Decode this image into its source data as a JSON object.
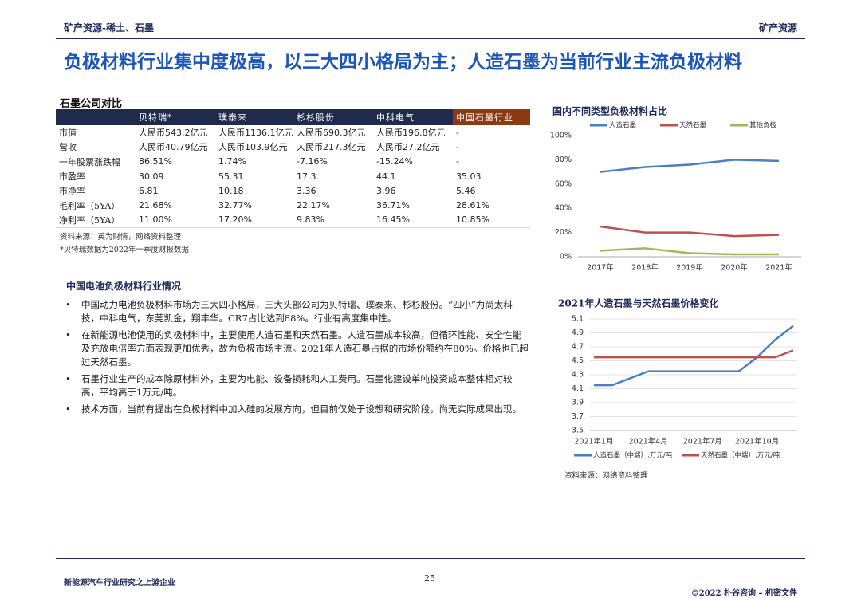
{
  "header": {
    "left": "矿产资源-稀土、石墨",
    "right": "矿产资源"
  },
  "title": "负极材料行业集中度极高，以三大四小格局为主；人造石墨为当前行业主流负极材料",
  "table": {
    "caption": "石墨公司对比",
    "columns": [
      "贝特瑞*",
      "璞泰来",
      "杉杉股份",
      "中科电气",
      "中国石墨行业"
    ],
    "rows": [
      [
        "市值",
        "人民币543.2亿元",
        "人民币1136.1亿元",
        "人民币690.3亿元",
        "人民币196.8亿元",
        "-"
      ],
      [
        "营收",
        "人民币40.79亿元",
        "人民币103.9亿元",
        "人民币217.3亿元",
        "人民币27.2亿元",
        "-"
      ],
      [
        "一年股票涨跌幅",
        "86.51%",
        "1.74%",
        "-7.16%",
        "-15.24%",
        "-"
      ],
      [
        "市盈率",
        "30.09",
        "55.31",
        "17.3",
        "44.1",
        "35.03"
      ],
      [
        "市净率",
        "6.81",
        "10.18",
        "3.36",
        "3.96",
        "5.46"
      ],
      [
        "毛利率（5YA）",
        "21.68%",
        "32.77%",
        "22.17%",
        "36.71%",
        "28.61%"
      ],
      [
        "净利率（5YA）",
        "11.00%",
        "17.20%",
        "9.83%",
        "16.45%",
        "10.85%"
      ]
    ],
    "notes": [
      "资料来源：英为财情，网络资料整理",
      "*贝特瑞数据为2022年一季度财报数据"
    ]
  },
  "section": {
    "heading": "中国电池负极材料行业情况",
    "bullets": [
      "中国动力电池负极材料市场为三大四小格局，三大头部公司为贝特瑞、璞泰来、杉杉股份。“四小”为尚太科技，中科电气，东莞凯金，翔丰华。CR7占比达到88%。行业有高度集中性。",
      "在新能源电池使用的负极材料中，主要使用人造石墨和天然石墨。人造石墨成本较高，但循环性能、安全性能及充放电倍率方面表现更加优秀，故为负极市场主流。2021年人造石墨占据的市场份额约在80%。价格也已超过天然石墨。",
      "石墨行业生产的成本除原材料外，主要为电能、设备损耗和人工费用。石墨化建设单吨投资成本整体相对较高，平均高于1万元/吨。",
      "技术方面，当前有提出在负极材料中加入硅的发展方向，但目前仅处于设想和研究阶段，尚无实际成果出现。"
    ]
  },
  "chart_data": [
    {
      "type": "line",
      "title": "国内不同类型负极材料占比",
      "categories": [
        "2017年",
        "2018年",
        "2019年",
        "2020年",
        "2021年"
      ],
      "series": [
        {
          "name": "人造石墨",
          "color": "#4a7fc1",
          "values": [
            70,
            74,
            76,
            80,
            79
          ]
        },
        {
          "name": "天然石墨",
          "color": "#c0504d",
          "values": [
            25,
            20,
            20,
            17,
            18
          ]
        },
        {
          "name": "其他负极",
          "color": "#9bbb59",
          "values": [
            5,
            7,
            3,
            2,
            2
          ]
        }
      ],
      "ylim": [
        0,
        100
      ],
      "yticks": [
        {
          "value": 0,
          "label": "0%"
        },
        {
          "value": 20,
          "label": "20%"
        },
        {
          "value": 40,
          "label": "40%"
        },
        {
          "value": 60,
          "label": "60%"
        },
        {
          "value": 80,
          "label": "80%"
        },
        {
          "value": 100,
          "label": "100%"
        }
      ],
      "grid": false,
      "legend": "top"
    },
    {
      "type": "line",
      "title": "2021年人造石墨与天然石墨价格变化",
      "categories": [
        "2021年1月",
        null,
        null,
        "2021年4月",
        null,
        null,
        "2021年7月",
        null,
        null,
        "2021年10月",
        null,
        null
      ],
      "series": [
        {
          "name": "人造石墨（中端）:万元/吨",
          "color": "#4a7fc1",
          "values": [
            4.15,
            4.15,
            4.25,
            4.35,
            4.35,
            4.35,
            4.35,
            4.35,
            4.35,
            4.55,
            4.8,
            5.0
          ]
        },
        {
          "name": "天然石墨（中端）:万元/吨",
          "color": "#c0504d",
          "values": [
            4.55,
            4.55,
            4.55,
            4.55,
            4.55,
            4.55,
            4.55,
            4.55,
            4.55,
            4.55,
            4.55,
            4.65
          ]
        }
      ],
      "ylim": [
        3.5,
        5.1
      ],
      "yticks": [
        3.5,
        3.7,
        3.9,
        4.1,
        4.3,
        4.5,
        4.7,
        4.9,
        5.1
      ],
      "grid": true,
      "legend": "bottom",
      "source": "资料来源：网络资料整理"
    }
  ],
  "footer": {
    "left": "新能源汽车行业研究之上游企业",
    "page": 25,
    "right": "©2022 朴谷咨询 – 机密文件"
  }
}
